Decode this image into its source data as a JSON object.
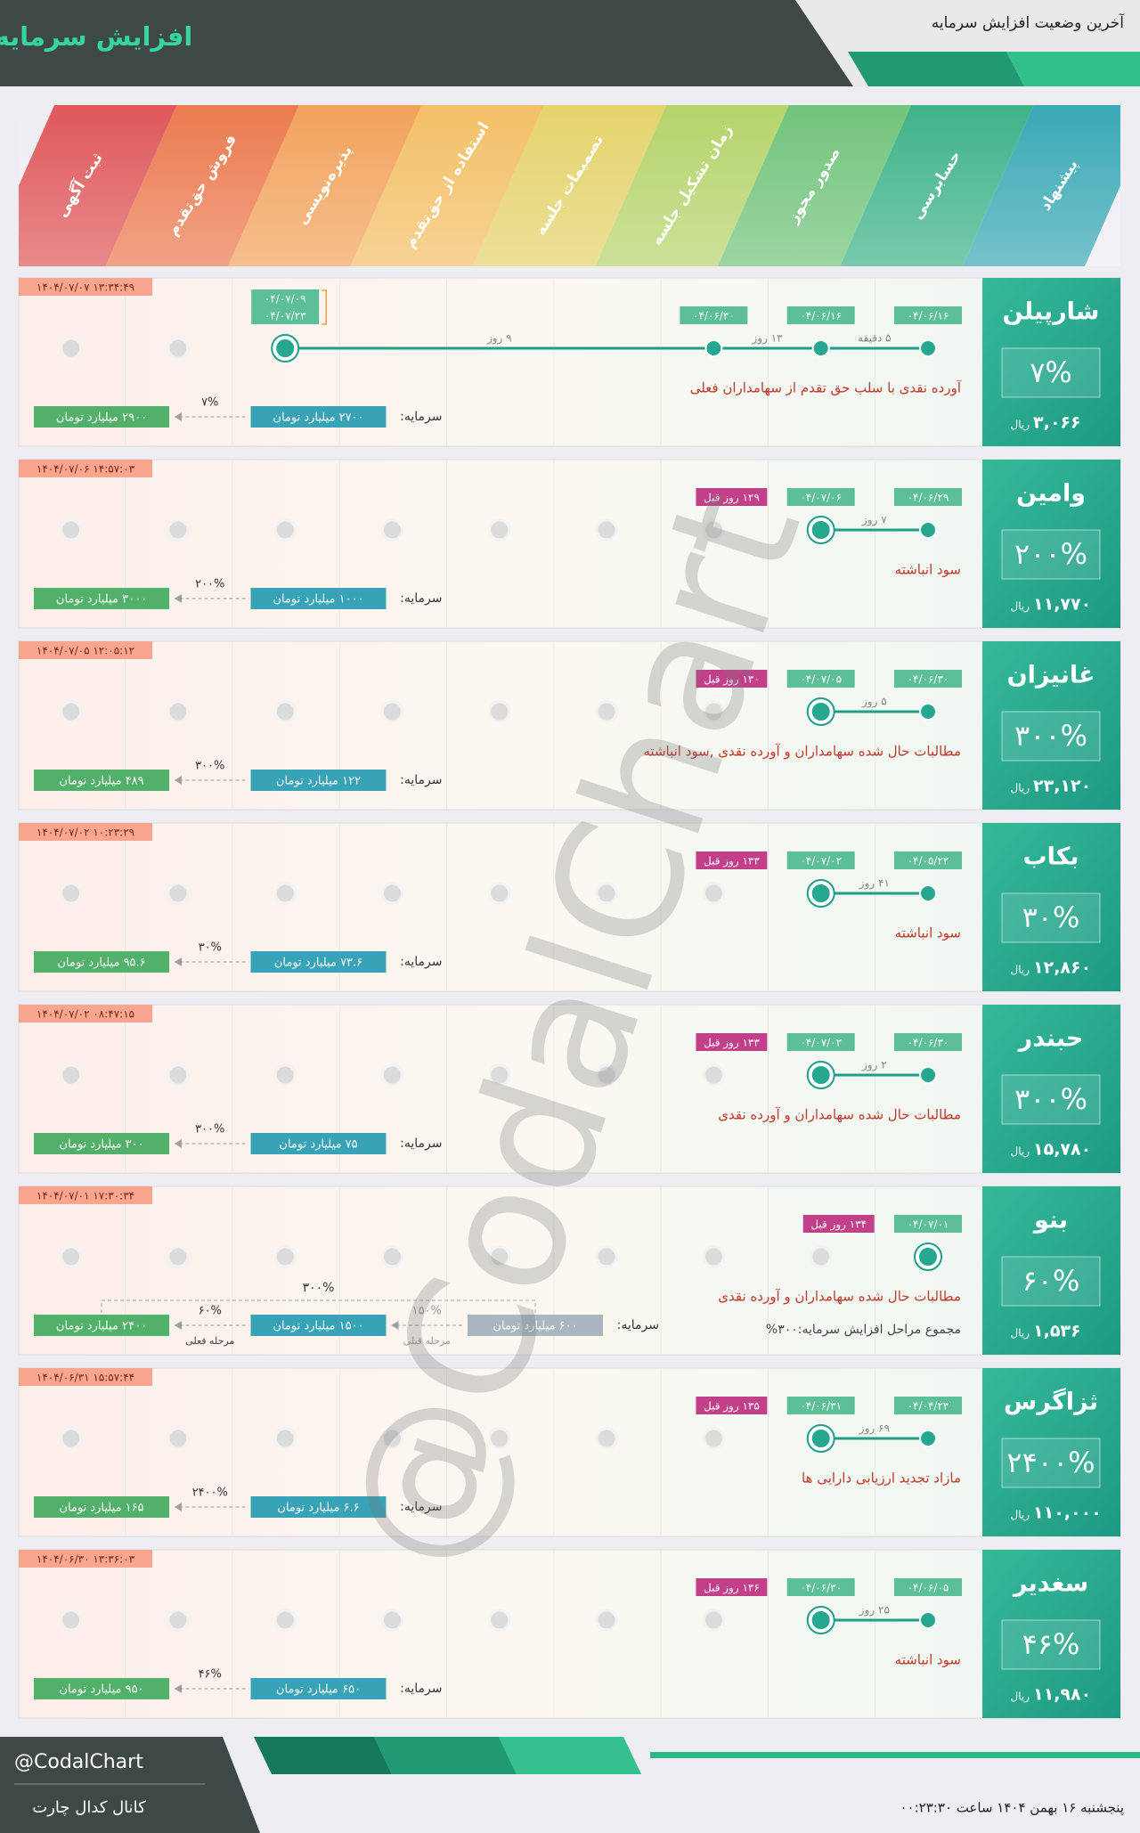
{
  "header": {
    "title": "افزایش سرمایه",
    "subtitle": "آخرین وضعیت افزایش سرمایه"
  },
  "stages": [
    "پیشنهاد",
    "حسابرسی",
    "صدور مجوز",
    "زمان تشکیل جلسه",
    "تصمیمات جلسه",
    "استفاده از حق‌تقدم",
    "پذیره‌نویسی",
    "فروش حق‌تقدم",
    "ثبت آگهی"
  ],
  "watermark": "@CodalChart",
  "companies": [
    {
      "name": "شارپیلن",
      "percent": "۷%",
      "price": "۳,۰۶۶",
      "currency": "ریال",
      "timestamp": "۱۴۰۴/۰۷/۰۷ ۱۳:۳۴:۴۹",
      "dates": [
        [
          "۰۴/۰۶/۱۶"
        ],
        [
          "۰۴/۰۶/۱۶"
        ],
        [
          "۰۴/۰۶/۳۰"
        ],
        null,
        null,
        null,
        [
          "۰۴/۰۷/۰۹",
          "۰۴/۰۷/۲۳"
        ],
        null,
        null
      ],
      "gaps": [
        "۵ دقیقه",
        "۱۳ روز",
        "۹ روز"
      ],
      "description": "آورده نقدی با سلب حق تقدم از سهامداران فعلی",
      "capital": {
        "label": "سرمایه:",
        "amounts": [
          "۲۷۰۰ میلیارد تومان",
          "۲۹۰۰ میلیارد تومان"
        ],
        "rates": [
          {
            "percent": "۷%"
          }
        ]
      }
    },
    {
      "name": "وامین",
      "percent": "۲۰۰%",
      "price": "۱۱,۷۷۰",
      "currency": "ریال",
      "timestamp": "۱۴۰۴/۰۷/۰۶ ۱۴:۵۷:۰۳",
      "dates": [
        [
          "۰۴/۰۶/۲۹"
        ],
        [
          "۰۴/۰۷/۰۶"
        ],
        null,
        null,
        null,
        null,
        null,
        null,
        null
      ],
      "gaps": [
        "۷ روز"
      ],
      "ago": "۱۲۹ روز قبل",
      "description": "سود انباشته",
      "capital": {
        "label": "سرمایه:",
        "amounts": [
          "۱۰۰۰ میلیارد تومان",
          "۳۰۰۰ میلیارد تومان"
        ],
        "rates": [
          {
            "percent": "۲۰۰%"
          }
        ]
      }
    },
    {
      "name": "غانیزان",
      "percent": "۳۰۰%",
      "price": "۲۳,۱۲۰",
      "currency": "ریال",
      "timestamp": "۱۴۰۴/۰۷/۰۵ ۱۲:۰۵:۱۲",
      "dates": [
        [
          "۰۴/۰۶/۳۰"
        ],
        [
          "۰۴/۰۷/۰۵"
        ],
        null,
        null,
        null,
        null,
        null,
        null,
        null
      ],
      "gaps": [
        "۵ روز"
      ],
      "ago": "۱۳۰ روز قبل",
      "description": "مطالبات حال شده سهامداران و آورده نقدی ,سود انباشته",
      "capital": {
        "label": "سرمایه:",
        "amounts": [
          "۱۲۲ میلیارد تومان",
          "۴۸۹ میلیارد تومان"
        ],
        "rates": [
          {
            "percent": "۳۰۰%"
          }
        ]
      }
    },
    {
      "name": "بکاب",
      "percent": "۳۰%",
      "price": "۱۲,۸۶۰",
      "currency": "ریال",
      "timestamp": "۱۴۰۴/۰۷/۰۲ ۱۰:۲۳:۲۹",
      "dates": [
        [
          "۰۴/۰۵/۲۲"
        ],
        [
          "۰۴/۰۷/۰۲"
        ],
        null,
        null,
        null,
        null,
        null,
        null,
        null
      ],
      "gaps": [
        "۴۱ روز"
      ],
      "ago": "۱۳۳ روز قبل",
      "description": "سود انباشته",
      "capital": {
        "label": "سرمایه:",
        "amounts": [
          "۷۳.۶ میلیارد تومان",
          "۹۵.۶ میلیارد تومان"
        ],
        "rates": [
          {
            "percent": "۳۰%"
          }
        ]
      }
    },
    {
      "name": "حبندر",
      "percent": "۳۰۰%",
      "price": "۱۵,۷۸۰",
      "currency": "ریال",
      "timestamp": "۱۴۰۴/۰۷/۰۲ ۰۸:۴۷:۱۵",
      "dates": [
        [
          "۰۴/۰۶/۳۰"
        ],
        [
          "۰۴/۰۷/۰۲"
        ],
        null,
        null,
        null,
        null,
        null,
        null,
        null
      ],
      "gaps": [
        "۲ روز"
      ],
      "ago": "۱۳۳ روز قبل",
      "description": "مطالبات حال شده سهامداران و آورده نقدی",
      "capital": {
        "label": "سرمایه:",
        "amounts": [
          "۷۵ میلیارد تومان",
          "۳۰۰ میلیارد تومان"
        ],
        "rates": [
          {
            "percent": "۳۰۰%"
          }
        ]
      }
    },
    {
      "name": "بنو",
      "percent": "۶۰%",
      "price": "۱,۵۳۶",
      "currency": "ریال",
      "timestamp": "۱۴۰۴/۰۷/۰۱ ۱۷:۳۰:۳۴",
      "dates": [
        [
          "۰۴/۰۷/۰۱"
        ],
        null,
        null,
        null,
        null,
        null,
        null,
        null,
        null
      ],
      "ago": "۱۳۴ روز قبل",
      "description": "مطالبات حال شده سهامداران و آورده نقدی",
      "summary": "مجموع مراحل افزایش سرمایه:۳۰۰%",
      "capital": {
        "label": "سرمایه:",
        "amounts": [
          "۶۰۰ میلیارد تومان",
          "۱۵۰۰ میلیارد تومان",
          "۲۴۰۰ میلیارد تومان"
        ],
        "rates": [
          {
            "percent": "۱۵۰%",
            "note": "مرحله قبلی"
          },
          {
            "percent": "۶۰%",
            "note": "مرحله فعلی"
          }
        ],
        "total": "۳۰۰%"
      }
    },
    {
      "name": "ثزاگرس",
      "percent": "۲۴۰۰%",
      "price": "۱۱۰,۰۰۰",
      "currency": "ریال",
      "timestamp": "۱۴۰۴/۰۶/۳۱ ۱۵:۵۷:۴۴",
      "dates": [
        [
          "۰۴/۰۴/۲۳"
        ],
        [
          "۰۴/۰۶/۳۱"
        ],
        null,
        null,
        null,
        null,
        null,
        null,
        null
      ],
      "gaps": [
        "۶۹ روز"
      ],
      "ago": "۱۳۵ روز قبل",
      "description": "مازاد تجدید ارزیابی دارایی ها",
      "capital": {
        "label": "سرمایه:",
        "amounts": [
          "۶.۶ میلیارد تومان",
          "۱۶۵ میلیارد تومان"
        ],
        "rates": [
          {
            "percent": "۲۴۰۰%"
          }
        ]
      }
    },
    {
      "name": "سغدیر",
      "percent": "۴۶%",
      "price": "۱۱,۹۸۰",
      "currency": "ریال",
      "timestamp": "۱۴۰۴/۰۶/۳۰ ۱۳:۳۶:۰۳",
      "dates": [
        [
          "۰۴/۰۶/۰۵"
        ],
        [
          "۰۴/۰۶/۳۰"
        ],
        null,
        null,
        null,
        null,
        null,
        null,
        null
      ],
      "gaps": [
        "۲۵ روز"
      ],
      "ago": "۱۳۶ روز قبل",
      "description": "سود انباشته",
      "capital": {
        "label": "سرمایه:",
        "amounts": [
          "۶۵۰ میلیارد تومان",
          "۹۵۰ میلیارد تومان"
        ],
        "rates": [
          {
            "percent": "۴۶%"
          }
        ]
      }
    }
  ],
  "footer": {
    "handle": "@CodalChart",
    "channel": "کانال کدال چارت",
    "datetime": "پنجشنبه ۱۶ بهمن ۱۴۰۴ ساعت ۰۰:۲۳:۳۰"
  }
}
